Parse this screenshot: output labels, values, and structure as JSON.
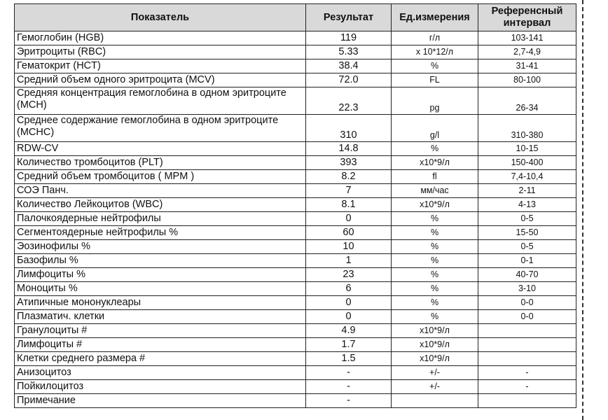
{
  "headers": [
    "Показатель",
    "Результат",
    "Ед.измерения",
    "Референсный интервал"
  ],
  "rows": [
    {
      "name": "Гемоглобин (HGB)",
      "result": "119",
      "unit": "г/л",
      "ref": "103-141"
    },
    {
      "name": "Эритроциты (RBC)",
      "result": "5.33",
      "unit": "x 10*12/л",
      "ref": "2,7-4,9"
    },
    {
      "name": "Гематокрит (HCT)",
      "result": "38.4",
      "unit": "%",
      "ref": "31-41"
    },
    {
      "name": "Средний объем одного эритроцита (MCV)",
      "result": "72.0",
      "unit": "FL",
      "ref": "80-100"
    },
    {
      "name": "Средняя концентрация гемоглобина в одном эритроците (MCH)",
      "result": "22.3",
      "unit": "pg",
      "ref": "26-34",
      "two": true
    },
    {
      "name": "Среднее содержание гемоглобина в одном эритроците (MCHC)",
      "result": "310",
      "unit": "g/l",
      "ref": "310-380",
      "two": true
    },
    {
      "name": "RDW-CV",
      "result": "14.8",
      "unit": "%",
      "ref": "10-15"
    },
    {
      "name": "Количество тромбоцитов (PLT)",
      "result": "393",
      "unit": "x10*9/л",
      "ref": "150-400"
    },
    {
      "name": "Средний объем тромбоцитов ( MPM )",
      "result": "8.2",
      "unit": "fl",
      "ref": "7,4-10,4"
    },
    {
      "name": "СОЭ Панч.",
      "result": "7",
      "unit": "мм/час",
      "ref": "2-11"
    },
    {
      "name": "Количество Лейкоцитов (WBC)",
      "result": "8.1",
      "unit": "x10*9/л",
      "ref": "4-13"
    },
    {
      "name": "Палочкоядерные нейтрофилы",
      "result": "0",
      "unit": "%",
      "ref": "0-5"
    },
    {
      "name": "Сегментоядерные нейтрофилы %",
      "result": "60",
      "unit": "%",
      "ref": "15-50"
    },
    {
      "name": "Эозинофилы %",
      "result": "10",
      "unit": "%",
      "ref": "0-5"
    },
    {
      "name": "Базофилы %",
      "result": "1",
      "unit": "%",
      "ref": "0-1"
    },
    {
      "name": "Лимфоциты %",
      "result": "23",
      "unit": "%",
      "ref": "40-70"
    },
    {
      "name": "Моноциты %",
      "result": "6",
      "unit": "%",
      "ref": "3-10"
    },
    {
      "name": "Атипичные мононуклеары",
      "result": "0",
      "unit": "%",
      "ref": "0-0"
    },
    {
      "name": "Плазматич. клетки",
      "result": "0",
      "unit": "%",
      "ref": "0-0"
    },
    {
      "name": "Гранулоциты #",
      "result": "4.9",
      "unit": "x10*9/л",
      "ref": ""
    },
    {
      "name": "Лимфоциты #",
      "result": "1.7",
      "unit": "x10*9/л",
      "ref": ""
    },
    {
      "name": "Клетки среднего размера #",
      "result": "1.5",
      "unit": "x10*9/л",
      "ref": ""
    },
    {
      "name": "Анизоцитоз",
      "result": "-",
      "unit": "+/-",
      "ref": "-"
    },
    {
      "name": "Пойкилоцитоз",
      "result": "-",
      "unit": "+/-",
      "ref": "-"
    },
    {
      "name": "Примечание",
      "result": "-",
      "unit": "",
      "ref": ""
    }
  ]
}
